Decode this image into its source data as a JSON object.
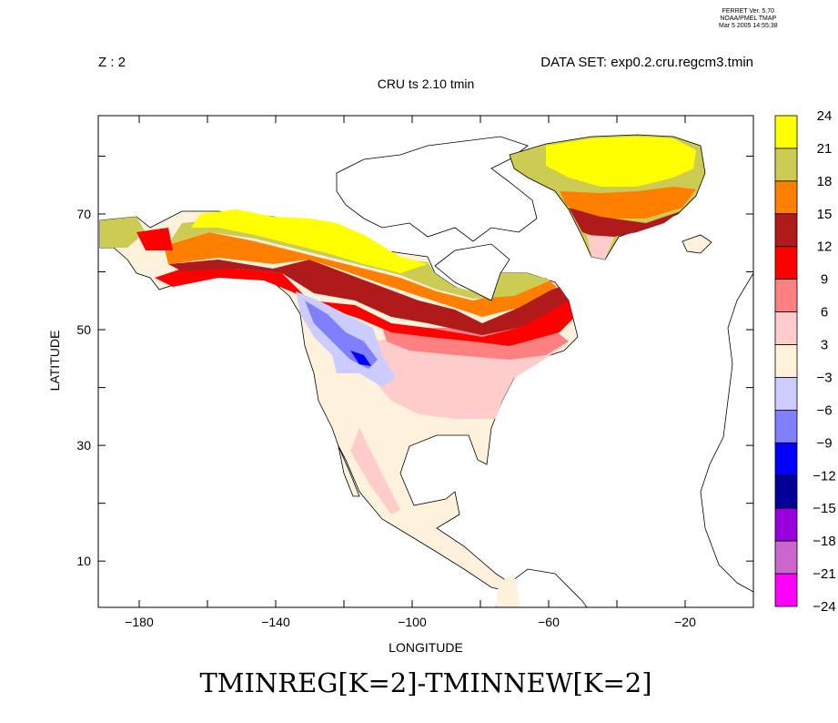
{
  "header": {
    "version_line": "FERRET Ver. 5.70",
    "org_line": "NOAA/PMEL TMAP",
    "date_line": "Mar  5 2005 14:55:38"
  },
  "z_label": "Z : 2",
  "dataset_label": "DATA SET: exp0.2.cru.regcm3.tmin",
  "subtitle": "CRU ts 2.10 tmin",
  "title": "TMINREG[K=2]-TMINNEW[K=2]",
  "chart_data": {
    "type": "heatmap",
    "title": "TMINREG[K=2]-TMINNEW[K=2]",
    "subtitle": "CRU ts 2.10 tmin",
    "xlabel": "LONGITUDE",
    "ylabel": "LATITUDE",
    "xlim": [
      -192,
      0
    ],
    "ylim": [
      2,
      87
    ],
    "x_ticks": [
      -180,
      -160,
      -140,
      -120,
      -100,
      -80,
      -60,
      -40,
      -20
    ],
    "x_tick_labels": [
      "−180",
      "−140",
      "−100",
      "−60",
      "−20"
    ],
    "x_tick_label_values": [
      -180,
      -140,
      -100,
      -60,
      -20
    ],
    "y_ticks": [
      10,
      20,
      30,
      40,
      50,
      60,
      70,
      80
    ],
    "y_tick_labels": [
      "10",
      "30",
      "50",
      "70"
    ],
    "y_tick_label_values": [
      10,
      30,
      50,
      70
    ],
    "colorbar": {
      "labels": [
        "24",
        "21",
        "18",
        "15",
        "12",
        "9",
        "6",
        "3",
        "−3",
        "−6",
        "−9",
        "−12",
        "−15",
        "−18",
        "−21",
        "−24"
      ],
      "colors": [
        "#ffff00",
        "#cccc55",
        "#ff8000",
        "#b01a1a",
        "#ff0000",
        "#ff8080",
        "#ffcccc",
        "#fff2dc",
        "#ccccff",
        "#8080ff",
        "#0000ff",
        "#000099",
        "#9900e0",
        "#cc66cc",
        "#ff00ff"
      ]
    }
  }
}
